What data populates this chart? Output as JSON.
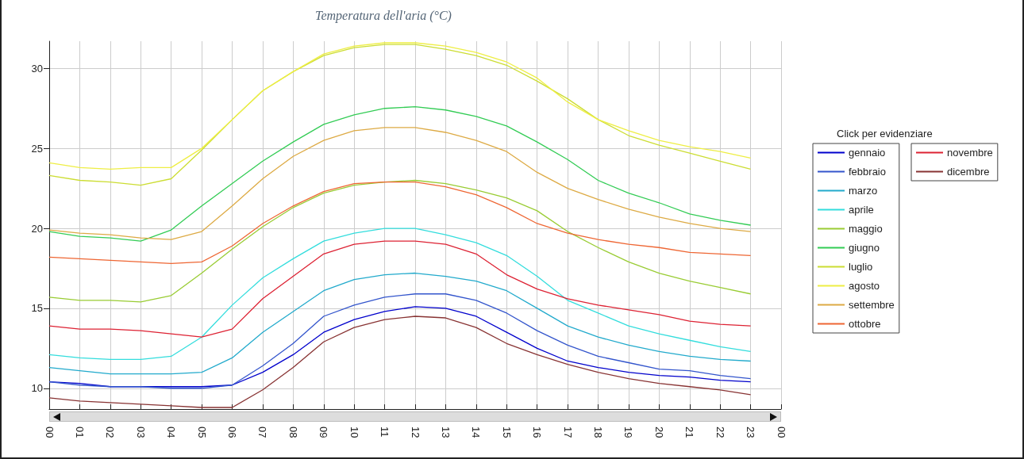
{
  "chart_data": {
    "type": "line",
    "title": "Temperatura dell'aria (°C)",
    "legend_title": "Click per evidenziare",
    "x": [
      0,
      1,
      2,
      3,
      4,
      5,
      6,
      7,
      8,
      9,
      10,
      11,
      12,
      13,
      14,
      15,
      16,
      17,
      18,
      19,
      20,
      21,
      22,
      23
    ],
    "xlim": [
      0,
      24
    ],
    "xticks": [
      {
        "value": 0,
        "label": "00"
      },
      {
        "value": 1,
        "label": "01"
      },
      {
        "value": 2,
        "label": "02"
      },
      {
        "value": 3,
        "label": "03"
      },
      {
        "value": 4,
        "label": "04"
      },
      {
        "value": 5,
        "label": "05"
      },
      {
        "value": 6,
        "label": "06"
      },
      {
        "value": 7,
        "label": "07"
      },
      {
        "value": 8,
        "label": "08"
      },
      {
        "value": 9,
        "label": "09"
      },
      {
        "value": 10,
        "label": "10"
      },
      {
        "value": 11,
        "label": "11"
      },
      {
        "value": 12,
        "label": "12"
      },
      {
        "value": 13,
        "label": "13"
      },
      {
        "value": 14,
        "label": "14"
      },
      {
        "value": 15,
        "label": "15"
      },
      {
        "value": 16,
        "label": "16"
      },
      {
        "value": 17,
        "label": "17"
      },
      {
        "value": 18,
        "label": "18"
      },
      {
        "value": 19,
        "label": "19"
      },
      {
        "value": 20,
        "label": "20"
      },
      {
        "value": 21,
        "label": "21"
      },
      {
        "value": 22,
        "label": "22"
      },
      {
        "value": 23,
        "label": "23"
      },
      {
        "value": 24,
        "label": "00"
      }
    ],
    "ylim": [
      8.7,
      31.7
    ],
    "yticks": [
      10,
      15,
      20,
      25,
      30
    ],
    "grid": true,
    "legend": "right",
    "marker": "none",
    "line_style": "solid",
    "series": [
      {
        "name": "gennaio",
        "color": "#0000cc",
        "values": [
          10.4,
          10.3,
          10.1,
          10.1,
          10.1,
          10.1,
          10.2,
          11.0,
          12.1,
          13.5,
          14.3,
          14.8,
          15.1,
          15.0,
          14.5,
          13.5,
          12.5,
          11.7,
          11.3,
          11.0,
          10.8,
          10.7,
          10.5,
          10.4
        ]
      },
      {
        "name": "febbraio",
        "color": "#3355cc",
        "values": [
          10.4,
          10.2,
          10.1,
          10.1,
          10.0,
          10.0,
          10.2,
          11.4,
          12.8,
          14.5,
          15.2,
          15.7,
          15.9,
          15.9,
          15.5,
          14.7,
          13.6,
          12.7,
          12.0,
          11.6,
          11.2,
          11.1,
          10.8,
          10.6
        ]
      },
      {
        "name": "marzo",
        "color": "#22aacc",
        "values": [
          11.3,
          11.1,
          10.9,
          10.9,
          10.9,
          11.0,
          11.9,
          13.5,
          14.8,
          16.1,
          16.8,
          17.1,
          17.2,
          17.0,
          16.7,
          16.1,
          15.0,
          13.9,
          13.2,
          12.7,
          12.3,
          12.0,
          11.8,
          11.7
        ]
      },
      {
        "name": "aprile",
        "color": "#33dddd",
        "values": [
          12.1,
          11.9,
          11.8,
          11.8,
          12.0,
          13.2,
          15.2,
          16.9,
          18.1,
          19.2,
          19.7,
          20.0,
          20.0,
          19.6,
          19.1,
          18.3,
          17.0,
          15.5,
          14.7,
          13.9,
          13.4,
          13.0,
          12.6,
          12.3
        ]
      },
      {
        "name": "maggio",
        "color": "#99cc33",
        "values": [
          15.7,
          15.5,
          15.5,
          15.4,
          15.8,
          17.2,
          18.7,
          20.1,
          21.3,
          22.2,
          22.7,
          22.9,
          23.0,
          22.8,
          22.4,
          21.9,
          21.1,
          19.8,
          18.8,
          17.9,
          17.2,
          16.7,
          16.3,
          15.9
        ]
      },
      {
        "name": "giugno",
        "color": "#33cc55",
        "values": [
          19.8,
          19.5,
          19.4,
          19.2,
          19.9,
          21.4,
          22.8,
          24.2,
          25.4,
          26.5,
          27.1,
          27.5,
          27.6,
          27.4,
          27.0,
          26.4,
          25.4,
          24.3,
          23.0,
          22.2,
          21.6,
          20.9,
          20.5,
          20.2
        ]
      },
      {
        "name": "luglio",
        "color": "#ccdd33",
        "values": [
          23.3,
          23.0,
          22.9,
          22.7,
          23.1,
          24.9,
          26.8,
          28.6,
          29.8,
          30.8,
          31.3,
          31.5,
          31.5,
          31.2,
          30.8,
          30.2,
          29.2,
          28.1,
          26.8,
          25.8,
          25.2,
          24.7,
          24.2,
          23.7
        ]
      },
      {
        "name": "agosto",
        "color": "#eeee44",
        "values": [
          24.1,
          23.8,
          23.7,
          23.8,
          23.8,
          25.0,
          26.8,
          28.6,
          29.8,
          30.9,
          31.4,
          31.6,
          31.6,
          31.4,
          31.0,
          30.4,
          29.4,
          27.9,
          26.8,
          26.1,
          25.5,
          25.1,
          24.8,
          24.4
        ]
      },
      {
        "name": "settembre",
        "color": "#ddaa44",
        "values": [
          19.9,
          19.7,
          19.6,
          19.4,
          19.3,
          19.8,
          21.4,
          23.1,
          24.5,
          25.5,
          26.1,
          26.3,
          26.3,
          26.0,
          25.5,
          24.8,
          23.5,
          22.5,
          21.8,
          21.2,
          20.7,
          20.3,
          20.0,
          19.8
        ]
      },
      {
        "name": "ottobre",
        "color": "#ee6633",
        "values": [
          18.2,
          18.1,
          18.0,
          17.9,
          17.8,
          17.9,
          18.9,
          20.3,
          21.4,
          22.3,
          22.8,
          22.9,
          22.9,
          22.6,
          22.1,
          21.3,
          20.3,
          19.7,
          19.3,
          19.0,
          18.8,
          18.5,
          18.4,
          18.3
        ]
      },
      {
        "name": "novembre",
        "color": "#dd2233",
        "values": [
          13.9,
          13.7,
          13.7,
          13.6,
          13.4,
          13.2,
          13.7,
          15.6,
          17.0,
          18.4,
          19.0,
          19.2,
          19.2,
          19.0,
          18.4,
          17.1,
          16.2,
          15.6,
          15.2,
          14.9,
          14.6,
          14.2,
          14.0,
          13.9
        ]
      },
      {
        "name": "dicembre",
        "color": "#883333",
        "values": [
          9.4,
          9.2,
          9.1,
          9.0,
          8.9,
          8.8,
          8.8,
          9.9,
          11.3,
          12.9,
          13.8,
          14.3,
          14.5,
          14.4,
          13.8,
          12.8,
          12.1,
          11.5,
          11.0,
          10.6,
          10.3,
          10.1,
          9.9,
          9.6
        ]
      }
    ]
  }
}
